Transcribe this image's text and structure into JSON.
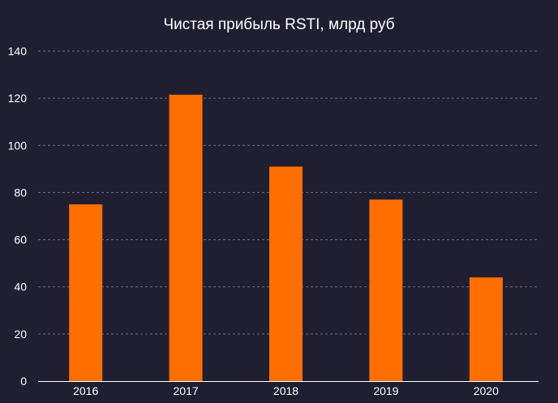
{
  "chart_data": {
    "type": "bar",
    "title": "Чистая прибыль RSTI, млрд руб",
    "xlabel": "",
    "ylabel": "",
    "categories": [
      "2016",
      "2017",
      "2018",
      "2019",
      "2020"
    ],
    "values": [
      75,
      121.5,
      91,
      77,
      44
    ],
    "ylim": [
      0,
      140
    ],
    "yticks": [
      0,
      20,
      40,
      60,
      80,
      100,
      120,
      140
    ],
    "grid": "horizontal-dashed",
    "legend": "none"
  },
  "colors": {
    "background": "#201f32",
    "bar": "#ff6e00",
    "grid": "#6e6e80",
    "axis": "#ffffff",
    "text": "#ffffff"
  }
}
